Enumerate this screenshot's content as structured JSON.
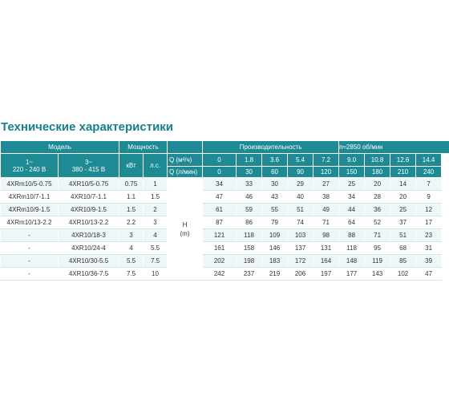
{
  "title": "Технические характеристики",
  "header": {
    "model": "Модель",
    "power": "Мощность",
    "performance": "Производительность",
    "rpm": "n≈2850 об/мин",
    "phase1": "1~",
    "volt1": "220 - 240 В",
    "phase3": "3~",
    "volt3": "380 - 415 В",
    "kw": "кВт",
    "hp": "л.с.",
    "q_m3": "Q (м³/ч)",
    "q_lmin": "Q (л/мин)",
    "h_label": "H",
    "h_unit": "(m)"
  },
  "q_m3_values": [
    "0",
    "1.8",
    "3.6",
    "5.4",
    "7.2",
    "9.0",
    "10.8",
    "12.6",
    "14.4"
  ],
  "q_lmin_values": [
    "0",
    "30",
    "60",
    "90",
    "120",
    "150",
    "180",
    "210",
    "240"
  ],
  "rows": [
    {
      "m1": "4XRm10/5-0.75",
      "m3": "4XR10/5-0.75",
      "kw": "0.75",
      "hp": "1",
      "h": [
        "34",
        "33",
        "30",
        "29",
        "27",
        "25",
        "20",
        "14",
        "7"
      ]
    },
    {
      "m1": "4XRm10/7-1.1",
      "m3": "4XR10/7-1.1",
      "kw": "1.1",
      "hp": "1.5",
      "h": [
        "47",
        "46",
        "43",
        "40",
        "38",
        "34",
        "28",
        "20",
        "9"
      ]
    },
    {
      "m1": "4XRm10/9-1.5",
      "m3": "4XR10/9-1.5",
      "kw": "1.5",
      "hp": "2",
      "h": [
        "61",
        "59",
        "55",
        "51",
        "49",
        "44",
        "36",
        "25",
        "12"
      ]
    },
    {
      "m1": "4XRm10/13-2.2",
      "m3": "4XR10/13-2.2",
      "kw": "2.2",
      "hp": "3",
      "h": [
        "87",
        "86",
        "79",
        "74",
        "71",
        "64",
        "52",
        "37",
        "17"
      ]
    },
    {
      "m1": "-",
      "m3": "4XR10/18-3",
      "kw": "3",
      "hp": "4",
      "h": [
        "121",
        "118",
        "109",
        "103",
        "98",
        "88",
        "71",
        "51",
        "23"
      ]
    },
    {
      "m1": "-",
      "m3": "4XR10/24-4",
      "kw": "4",
      "hp": "5.5",
      "h": [
        "161",
        "158",
        "146",
        "137",
        "131",
        "118",
        "95",
        "68",
        "31"
      ]
    },
    {
      "m1": "-",
      "m3": "4XR10/30-5.5",
      "kw": "5.5",
      "hp": "7.5",
      "h": [
        "202",
        "198",
        "183",
        "172",
        "164",
        "148",
        "119",
        "85",
        "39"
      ]
    },
    {
      "m1": "-",
      "m3": "4XR10/36-7.5",
      "kw": "7.5",
      "hp": "10",
      "h": [
        "242",
        "237",
        "219",
        "206",
        "197",
        "177",
        "143",
        "102",
        "47"
      ]
    }
  ],
  "colors": {
    "accent": "#1e8a93",
    "title": "#17808a"
  }
}
